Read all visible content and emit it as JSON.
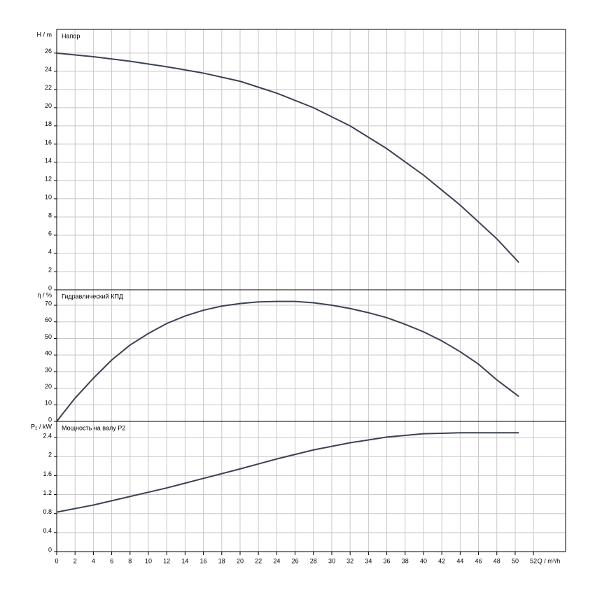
{
  "chart_data": [
    {
      "type": "line",
      "title": "Напор",
      "y_label": "H / m",
      "x": [
        0,
        4,
        8,
        12,
        16,
        20,
        24,
        28,
        32,
        36,
        40,
        44,
        48,
        50.4
      ],
      "values": [
        26,
        25.6,
        25.1,
        24.5,
        23.8,
        22.9,
        21.6,
        20,
        18,
        15.5,
        12.6,
        9.3,
        5.6,
        3
      ],
      "color": "#3b4252",
      "ylim": [
        0,
        28.6
      ],
      "yticks": [
        0,
        2,
        4,
        6,
        8,
        10,
        12,
        14,
        16,
        18,
        20,
        22,
        24,
        26
      ],
      "grid": true
    },
    {
      "type": "line",
      "title": "Гидравлический КПД",
      "y_label": "η / %",
      "x": [
        0,
        2,
        4,
        6,
        8,
        10,
        12,
        14,
        16,
        18,
        20,
        22,
        24,
        26,
        28,
        30,
        32,
        34,
        36,
        38,
        40,
        42,
        44,
        46,
        48,
        50.4
      ],
      "values": [
        0,
        14,
        26,
        37,
        46,
        53,
        59,
        63.5,
        67,
        69.5,
        71,
        72,
        72.3,
        72.3,
        71.5,
        70,
        68,
        65.5,
        62.5,
        58.5,
        54,
        48.5,
        42,
        34.5,
        25,
        15
      ],
      "color": "#3b4252",
      "ylim": [
        0,
        79.3
      ],
      "yticks": [
        0,
        10,
        20,
        30,
        40,
        50,
        60,
        70
      ],
      "grid": true
    },
    {
      "type": "line",
      "title": "Мощность на валу P2",
      "y_label": "P₂ / kW",
      "x_label": "Q / m³/h",
      "x": [
        0,
        4,
        8,
        12,
        16,
        20,
        24,
        28,
        32,
        36,
        40,
        44,
        50.4
      ],
      "values": [
        0.83,
        0.98,
        1.16,
        1.34,
        1.54,
        1.74,
        1.95,
        2.14,
        2.29,
        2.41,
        2.48,
        2.5,
        2.5
      ],
      "color": "#3b4252",
      "ylim": [
        0,
        2.74
      ],
      "yticks": [
        0,
        0.4,
        0.8,
        1.2,
        1.6,
        2,
        2.4
      ],
      "grid": true,
      "xlim": [
        0,
        55.5
      ],
      "xticks": [
        0,
        2,
        4,
        6,
        8,
        10,
        12,
        14,
        16,
        18,
        20,
        22,
        24,
        26,
        28,
        30,
        32,
        34,
        36,
        38,
        40,
        42,
        44,
        46,
        48,
        50,
        52
      ]
    }
  ]
}
